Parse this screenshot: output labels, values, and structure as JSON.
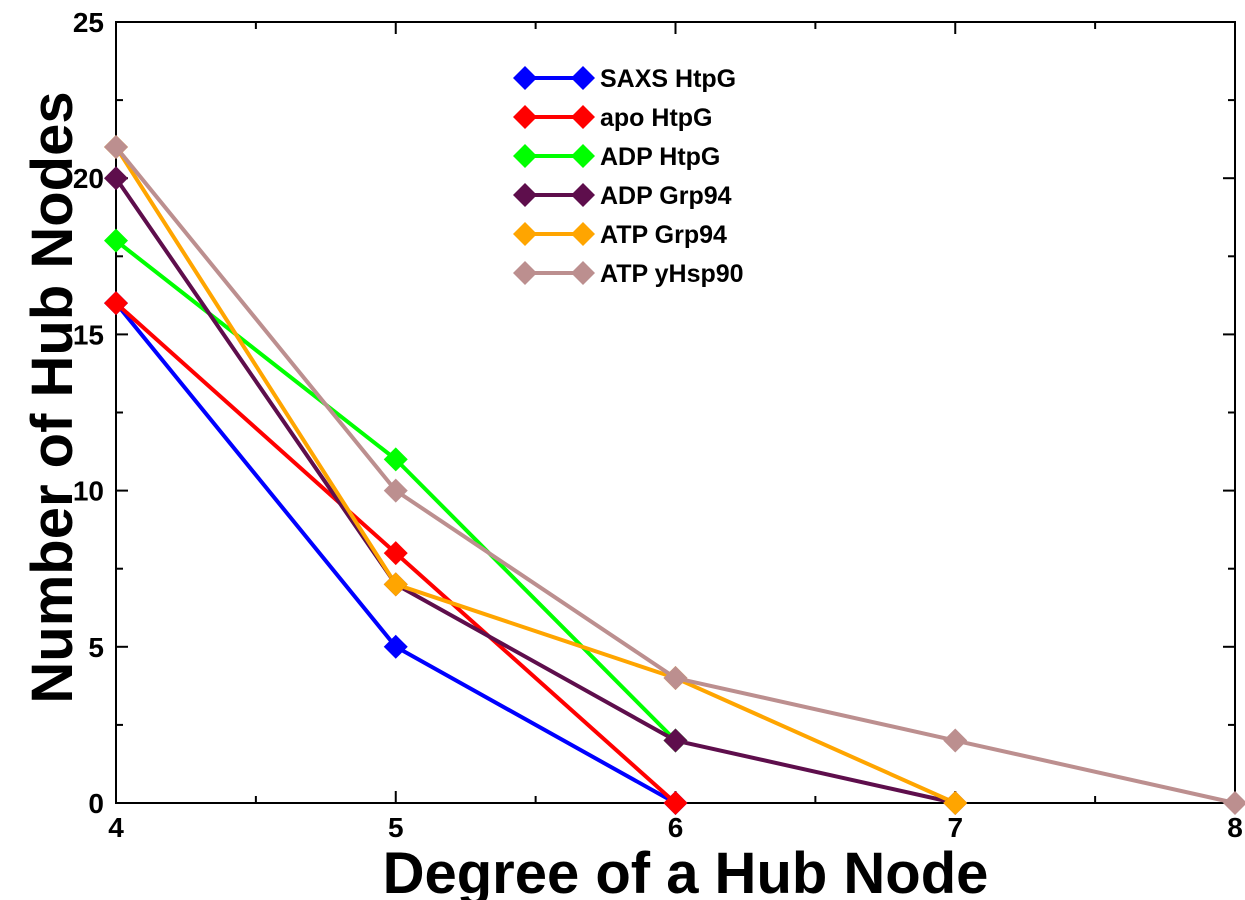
{
  "chart_data": {
    "type": "line",
    "xlabel": "Degree of a Hub Node",
    "ylabel": "Number of Hub Nodes",
    "xlim": [
      4,
      8
    ],
    "ylim": [
      0,
      25
    ],
    "x": [
      4,
      5,
      6,
      7,
      8
    ],
    "x_ticks": [
      "4",
      "5",
      "6",
      "7",
      "8"
    ],
    "y_ticks": [
      "0",
      "5",
      "10",
      "15",
      "20",
      "25"
    ],
    "grid": false,
    "legend_position": "top-center",
    "marker": "diamond",
    "series": [
      {
        "name": "SAXS HtpG",
        "color": "#0000ff",
        "x": [
          4,
          5,
          6
        ],
        "values": [
          16,
          5,
          0
        ]
      },
      {
        "name": "apo HtpG",
        "color": "#ff0000",
        "x": [
          4,
          5,
          6
        ],
        "values": [
          16,
          8,
          0
        ]
      },
      {
        "name": "ADP HtpG",
        "color": "#00ff00",
        "x": [
          4,
          5,
          6
        ],
        "values": [
          18,
          11,
          2
        ]
      },
      {
        "name": "ADP Grp94",
        "color": "#5e0e4c",
        "x": [
          4,
          5,
          6,
          7
        ],
        "values": [
          20,
          7,
          2,
          0
        ]
      },
      {
        "name": "ATP Grp94",
        "color": "#ffa500",
        "x": [
          4,
          5,
          6,
          7
        ],
        "values": [
          21,
          7,
          4,
          0
        ]
      },
      {
        "name": "ATP yHsp90",
        "color": "#bc8f8f",
        "x": [
          4,
          5,
          6,
          7,
          8
        ],
        "values": [
          21,
          10,
          4,
          2,
          0
        ]
      }
    ]
  }
}
